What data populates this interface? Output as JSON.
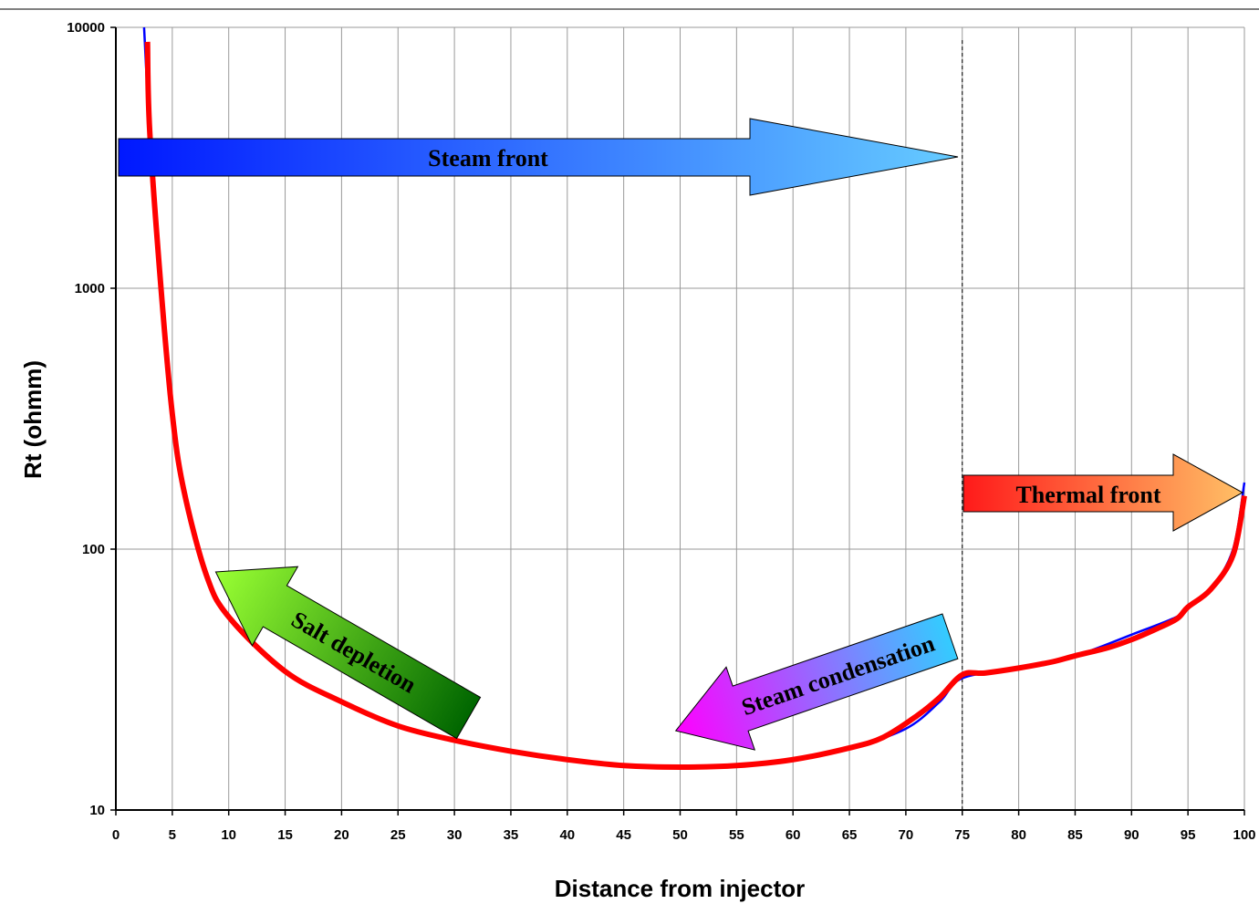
{
  "chart_data": {
    "type": "line",
    "xlabel": "Distance from injector",
    "ylabel": "Rt (ohmm)",
    "xlim": [
      0,
      100
    ],
    "ylim": [
      10,
      10000
    ],
    "yscale": "log",
    "grid": true,
    "x_ticks": [
      "0",
      "5",
      "10",
      "15",
      "20",
      "25",
      "30",
      "35",
      "40",
      "45",
      "50",
      "55",
      "60",
      "65",
      "70",
      "75",
      "80",
      "85",
      "90",
      "95",
      "100"
    ],
    "y_ticks": [
      "10",
      "100",
      "1000",
      "10000"
    ],
    "reference_line": {
      "x": 75,
      "style": "dashed"
    },
    "series": [
      {
        "color": "#0000ff",
        "points": [
          [
            2.5,
            10000
          ],
          [
            3,
            4000
          ],
          [
            4,
            1000
          ],
          [
            5,
            330
          ],
          [
            6,
            170
          ],
          [
            8,
            80
          ],
          [
            10,
            55
          ],
          [
            15,
            34
          ],
          [
            20,
            26
          ],
          [
            25,
            21
          ],
          [
            30,
            18.5
          ],
          [
            35,
            16.8
          ],
          [
            40,
            15.6
          ],
          [
            45,
            14.8
          ],
          [
            50,
            14.5
          ],
          [
            55,
            14.7
          ],
          [
            60,
            15.5
          ],
          [
            65,
            17.2
          ],
          [
            70,
            20.5
          ],
          [
            73,
            26
          ],
          [
            75,
            32
          ],
          [
            80,
            35
          ],
          [
            85,
            39
          ],
          [
            90,
            47
          ],
          [
            94,
            55
          ],
          [
            95,
            60
          ],
          [
            97,
            70
          ],
          [
            99,
            100
          ],
          [
            100,
            180
          ]
        ]
      },
      {
        "color": "#ff0000",
        "points": [
          [
            2.8,
            8800
          ],
          [
            3,
            4000
          ],
          [
            4,
            1000
          ],
          [
            5,
            330
          ],
          [
            6,
            170
          ],
          [
            8,
            80
          ],
          [
            10,
            55
          ],
          [
            15,
            34
          ],
          [
            20,
            26
          ],
          [
            25,
            21
          ],
          [
            30,
            18.5
          ],
          [
            35,
            16.8
          ],
          [
            40,
            15.6
          ],
          [
            45,
            14.8
          ],
          [
            50,
            14.6
          ],
          [
            55,
            14.8
          ],
          [
            60,
            15.6
          ],
          [
            65,
            17.3
          ],
          [
            68,
            19
          ],
          [
            71,
            23
          ],
          [
            73,
            27
          ],
          [
            75,
            33
          ],
          [
            77,
            33.5
          ],
          [
            80,
            35
          ],
          [
            83,
            37
          ],
          [
            85,
            39
          ],
          [
            88,
            42
          ],
          [
            90,
            45
          ],
          [
            92,
            49
          ],
          [
            94,
            54
          ],
          [
            95,
            60
          ],
          [
            97,
            70
          ],
          [
            99,
            95
          ],
          [
            100,
            160
          ]
        ]
      }
    ],
    "annotations": [
      {
        "text": "Steam front",
        "gradient": [
          "#0018ff",
          "#66ccff"
        ]
      },
      {
        "text": "Thermal front",
        "gradient": [
          "#ff1a1a",
          "#ffc066"
        ]
      },
      {
        "text": "Salt depletion",
        "gradient": [
          "#99ff33",
          "#006600"
        ]
      },
      {
        "text": "Steam condensation",
        "gradient": [
          "#ff00ff",
          "#33ccff"
        ]
      }
    ]
  }
}
